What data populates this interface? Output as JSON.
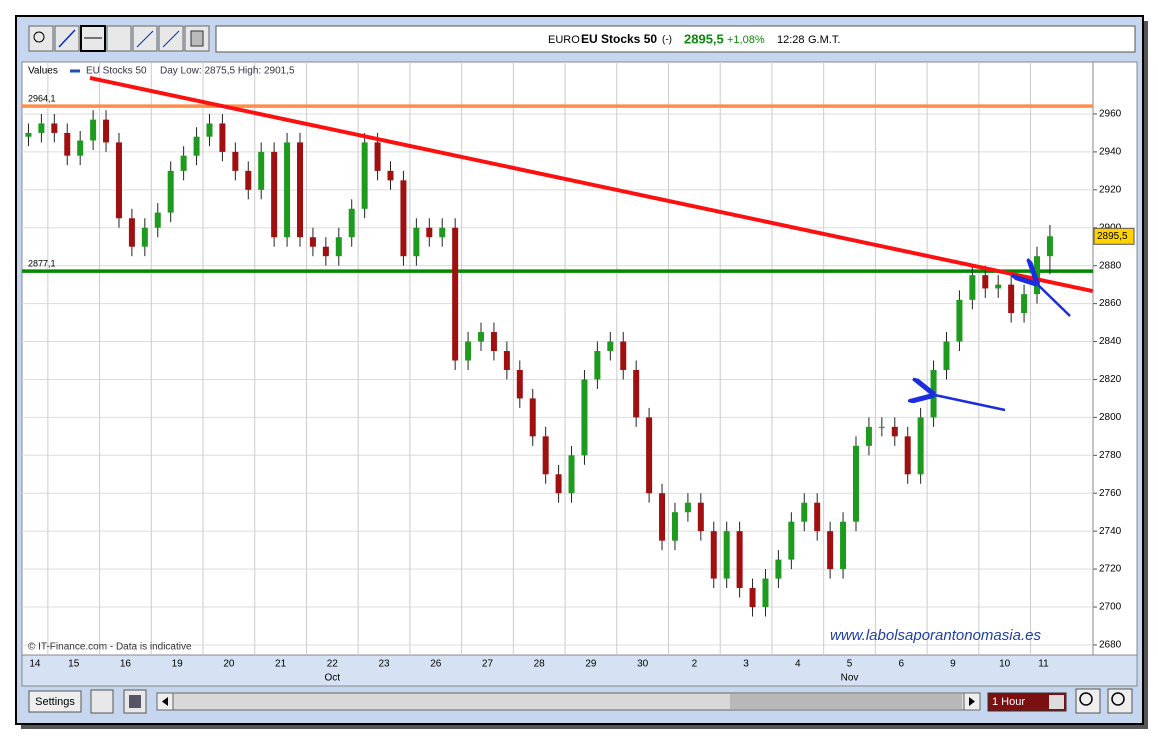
{
  "toolbar": {
    "header": {
      "market": "EURO",
      "name": "EU Stocks 50",
      "status": "(-)",
      "price": "2895,5",
      "change": "+1,08%",
      "time": "12:28",
      "zone": "G.M.T."
    }
  },
  "chart_data": {
    "type": "candlestick",
    "legend": {
      "label": "Values",
      "series": "EU Stocks 50",
      "day_range": "Day Low: 2875,5 High: 2901,5"
    },
    "categories": [
      "14",
      null,
      "15",
      null,
      null,
      null,
      "16",
      null,
      null,
      null,
      "19",
      null,
      null,
      null,
      "20",
      null,
      null,
      null,
      "21",
      null,
      null,
      null,
      "22",
      null,
      null,
      null,
      "23",
      null,
      null,
      null,
      "26",
      null,
      null,
      null,
      "27",
      null,
      null,
      null,
      "28",
      null,
      null,
      null,
      "29",
      null,
      null,
      null,
      "30",
      null,
      null,
      null,
      "2",
      null,
      null,
      null,
      "3",
      null,
      null,
      null,
      "4",
      null,
      null,
      null,
      "5",
      null,
      null,
      null,
      "6",
      null,
      null,
      null,
      "9",
      null,
      null,
      null,
      "10",
      null,
      null,
      null,
      "11",
      null
    ],
    "month_labels": [
      {
        "text": "Oct",
        "under": "22"
      },
      {
        "text": "Nov",
        "under": "5"
      }
    ],
    "open": [
      2948,
      2950,
      2955,
      2950,
      2938,
      2946,
      2957,
      2945,
      2905,
      2890,
      2900,
      2908,
      2930,
      2938,
      2948,
      2955,
      2940,
      2930,
      2920,
      2940,
      2895,
      2945,
      2895,
      2890,
      2885,
      2895,
      2910,
      2945,
      2930,
      2925,
      2885,
      2900,
      2895,
      2900,
      2830,
      2840,
      2845,
      2835,
      2825,
      2810,
      2790,
      2770,
      2760,
      2780,
      2820,
      2835,
      2840,
      2825,
      2800,
      2760,
      2735,
      2750,
      2755,
      2740,
      2715,
      2740,
      2710,
      2700,
      2715,
      2725,
      2745,
      2755,
      2740,
      2720,
      2745,
      2785,
      2795,
      2795,
      2790,
      2770,
      2800,
      2825,
      2840,
      2862,
      2875,
      2868,
      2870,
      2855,
      2865,
      2885
    ],
    "high": [
      2955,
      2960,
      2960,
      2955,
      2951,
      2962,
      2962,
      2950,
      2910,
      2905,
      2913,
      2935,
      2943,
      2953,
      2960,
      2960,
      2945,
      2935,
      2945,
      2945,
      2950,
      2950,
      2900,
      2895,
      2900,
      2915,
      2950,
      2950,
      2935,
      2930,
      2905,
      2905,
      2905,
      2905,
      2845,
      2850,
      2850,
      2840,
      2830,
      2815,
      2795,
      2775,
      2785,
      2825,
      2840,
      2845,
      2845,
      2830,
      2805,
      2765,
      2755,
      2760,
      2760,
      2745,
      2745,
      2745,
      2715,
      2720,
      2730,
      2750,
      2760,
      2760,
      2745,
      2750,
      2790,
      2800,
      2800,
      2800,
      2795,
      2805,
      2830,
      2845,
      2867,
      2880,
      2880,
      2875,
      2875,
      2870,
      2890,
      2901.5
    ],
    "low": [
      2943,
      2945,
      2945,
      2933,
      2933,
      2941,
      2940,
      2900,
      2885,
      2885,
      2895,
      2903,
      2925,
      2933,
      2943,
      2935,
      2925,
      2915,
      2915,
      2890,
      2890,
      2890,
      2885,
      2880,
      2880,
      2890,
      2905,
      2925,
      2920,
      2880,
      2880,
      2890,
      2890,
      2825,
      2825,
      2835,
      2830,
      2820,
      2805,
      2785,
      2765,
      2755,
      2755,
      2775,
      2815,
      2830,
      2820,
      2795,
      2755,
      2730,
      2730,
      2745,
      2735,
      2710,
      2710,
      2705,
      2695,
      2695,
      2710,
      2720,
      2740,
      2735,
      2715,
      2715,
      2740,
      2780,
      2790,
      2785,
      2765,
      2765,
      2795,
      2820,
      2835,
      2857,
      2863,
      2863,
      2850,
      2850,
      2860,
      2875.5
    ],
    "close": [
      2950,
      2955,
      2950,
      2938,
      2946,
      2957,
      2945,
      2905,
      2890,
      2900,
      2908,
      2930,
      2938,
      2948,
      2955,
      2940,
      2930,
      2920,
      2940,
      2895,
      2945,
      2895,
      2890,
      2885,
      2895,
      2910,
      2945,
      2930,
      2925,
      2885,
      2900,
      2895,
      2900,
      2830,
      2840,
      2845,
      2835,
      2825,
      2810,
      2790,
      2770,
      2760,
      2780,
      2820,
      2835,
      2840,
      2825,
      2800,
      2760,
      2735,
      2750,
      2755,
      2740,
      2715,
      2740,
      2710,
      2700,
      2715,
      2725,
      2745,
      2755,
      2740,
      2720,
      2745,
      2785,
      2795,
      2795,
      2790,
      2770,
      2800,
      2825,
      2840,
      2862,
      2875,
      2868,
      2870,
      2855,
      2865,
      2885,
      2895.5
    ],
    "up_color": "#1e9a1e",
    "down_color": "#a01010",
    "ylim": [
      2674.7,
      2987.4
    ],
    "yticks": [
      2680,
      2700,
      2720,
      2740,
      2760,
      2780,
      2800,
      2820,
      2840,
      2860,
      2880,
      2900,
      2920,
      2940,
      2960
    ],
    "grid": true,
    "levels": [
      {
        "value": 2964.1,
        "label": "2964,1",
        "color": "#ff8c4a"
      },
      {
        "value": 2877.1,
        "label": "2877,1",
        "color": "#008a00"
      }
    ],
    "trend_line": {
      "color": "#ff1010",
      "x": [
        5.26,
        82.8
      ],
      "y": [
        2979,
        2866.6
      ]
    },
    "last_label": "2895,5",
    "credit": "© IT-Finance.com - Data is indicative",
    "watermark": "www.labolsaporantonomasia.es"
  },
  "controls": {
    "settings": "Settings",
    "interval": "1 Hour"
  }
}
